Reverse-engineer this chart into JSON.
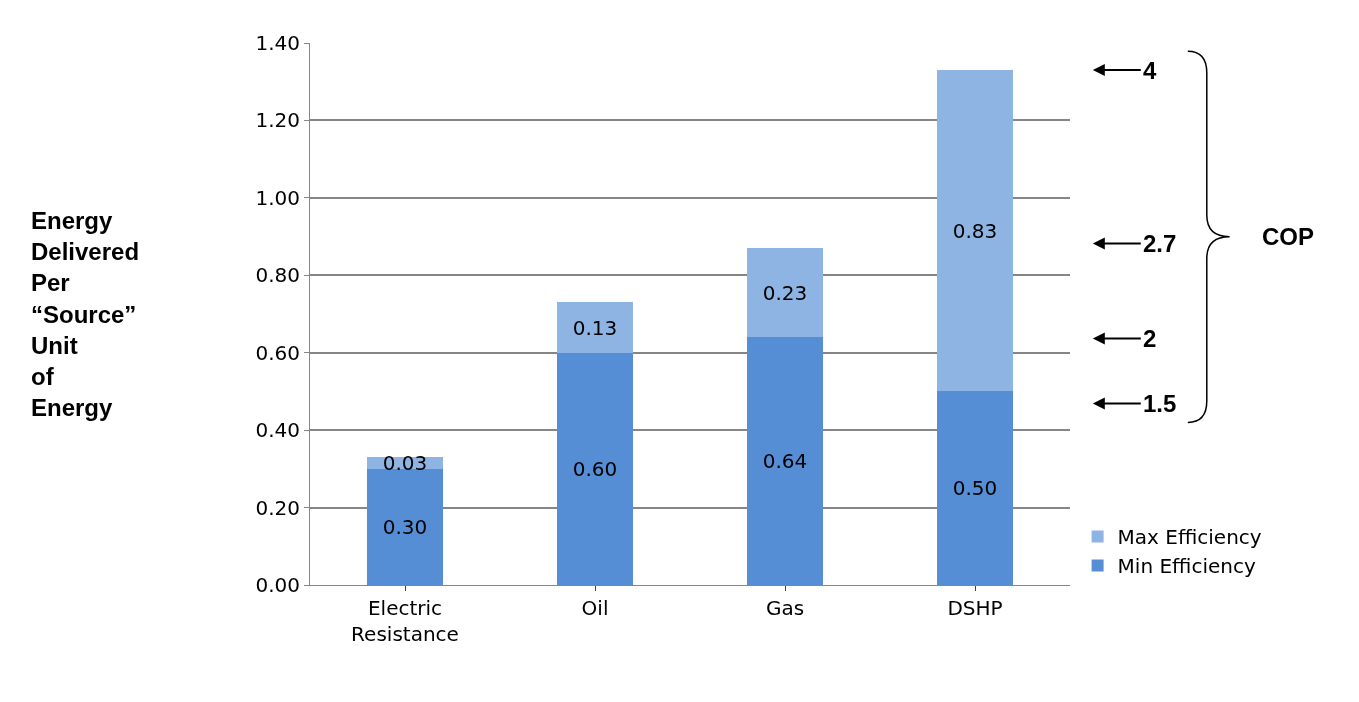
{
  "chart_data": {
    "type": "bar",
    "stacked": true,
    "categories": [
      "Electric\nResistance",
      "Oil",
      "Gas",
      "DSHP"
    ],
    "series": [
      {
        "name": "Min Efficiency",
        "color": "#558ed5",
        "values": [
          0.3,
          0.6,
          0.64,
          0.5
        ],
        "value_labels": [
          "0.30",
          "0.60",
          "0.64",
          "0.50"
        ]
      },
      {
        "name": "Max Efficiency",
        "color": "#8eb4e3",
        "values": [
          0.03,
          0.13,
          0.23,
          0.83
        ],
        "value_labels": [
          "0.03",
          "0.13",
          "0.23",
          "0.83"
        ]
      }
    ],
    "ylim": [
      0,
      1.4
    ],
    "yticks": [
      {
        "value": 0,
        "label": "0.00"
      },
      {
        "value": 0.2,
        "label": "0.20"
      },
      {
        "value": 0.4,
        "label": "0.40"
      },
      {
        "value": 0.6,
        "label": "0.60"
      },
      {
        "value": 0.8,
        "label": "0.80"
      },
      {
        "value": 1.0,
        "label": "1.00"
      },
      {
        "value": 1.2,
        "label": "1.20"
      },
      {
        "value": 1.4,
        "label": "1.40"
      }
    ],
    "grid": "y",
    "legend": "bottom right",
    "annotations": [
      "Energy\nDelivered\nPer\n“Source”\nUnit\nof\nEnergy",
      "4",
      "2.7",
      "2",
      "1.5",
      "COP"
    ]
  }
}
